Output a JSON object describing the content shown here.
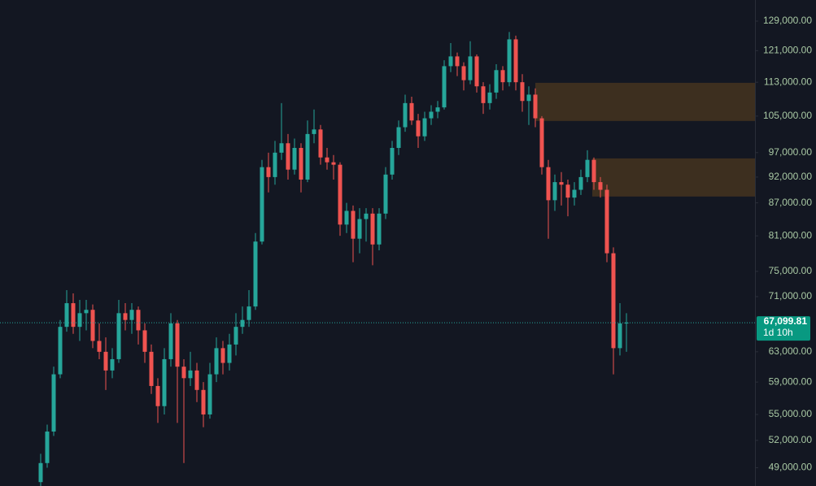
{
  "chart_data": {
    "type": "candlestick",
    "log_scale": true,
    "up_color": "#26a69a",
    "down_color": "#ef5350",
    "ylim": [
      47100,
      135040
    ],
    "yticks": [
      {
        "value": 49000,
        "label": "49,000.00"
      },
      {
        "value": 52000,
        "label": "52,000.00"
      },
      {
        "value": 55000,
        "label": "55,000.00"
      },
      {
        "value": 59000,
        "label": "59,000.00"
      },
      {
        "value": 63000,
        "label": "63,000.00"
      },
      {
        "value": 71000,
        "label": "71,000.00"
      },
      {
        "value": 75000,
        "label": "75,000.00"
      },
      {
        "value": 81000,
        "label": "81,000.00"
      },
      {
        "value": 87000,
        "label": "87,000.00"
      },
      {
        "value": 92000,
        "label": "92,000.00"
      },
      {
        "value": 97000,
        "label": "97,000.00"
      },
      {
        "value": 105000,
        "label": "105,000.00"
      },
      {
        "value": 113000,
        "label": "113,000.00"
      },
      {
        "value": 121000,
        "label": "121,000.00"
      },
      {
        "value": 129000,
        "label": "129,000.00"
      }
    ],
    "zones": [
      {
        "low": 103900,
        "high": 112850,
        "color": "#3d2f1f"
      },
      {
        "low": 88200,
        "high": 95800,
        "color": "#3d2f1f"
      }
    ],
    "last_price": {
      "value": 67099.81,
      "label": "67,099.81"
    },
    "countdown": "1d 10h",
    "open": [
      47500,
      49500,
      53000,
      60000,
      66500,
      70000,
      66500,
      68500,
      69000,
      64500,
      63000,
      60500,
      62000,
      68500,
      67500,
      69000,
      66000,
      63000,
      58500,
      56000,
      62000,
      67000,
      61000,
      59500,
      60500,
      58000,
      55000,
      60000,
      63500,
      61500,
      64000,
      66500,
      67500,
      69500,
      80000,
      94000,
      92000,
      97000,
      99000,
      93500,
      98000,
      91500,
      101000,
      102000,
      96000,
      95000,
      94500,
      83000,
      85500,
      80500,
      84000,
      85000,
      79500,
      85000,
      92500,
      98000,
      102500,
      108000,
      104000,
      100500,
      104500,
      106000,
      107000,
      117000,
      119500,
      117000,
      113500,
      119500,
      112000,
      108000,
      110500,
      116000,
      113000,
      124000,
      113000,
      108500,
      110000,
      104500,
      94000,
      87500,
      91000,
      90500,
      88000,
      89500,
      92000,
      95500,
      91000,
      89500,
      78000,
      63500,
      67000
    ],
    "high": [
      50500,
      53800,
      61000,
      67500,
      72000,
      71500,
      70500,
      70500,
      69800,
      67000,
      65000,
      63500,
      70500,
      70000,
      70000,
      69500,
      67000,
      64000,
      59500,
      63500,
      68500,
      67500,
      62000,
      63000,
      61500,
      59000,
      61500,
      65000,
      64500,
      65500,
      68500,
      69500,
      72000,
      81500,
      95500,
      97000,
      99500,
      108000,
      101000,
      100000,
      99000,
      104000,
      106500,
      103000,
      98000,
      96500,
      95000,
      87000,
      86500,
      86000,
      86000,
      86000,
      86000,
      94000,
      99500,
      104000,
      110000,
      109500,
      105500,
      106000,
      107500,
      108500,
      118500,
      123000,
      120500,
      118000,
      123500,
      120000,
      113000,
      112500,
      117500,
      117000,
      126000,
      125000,
      115000,
      112000,
      111500,
      105000,
      95500,
      92500,
      93000,
      91500,
      91000,
      93500,
      97500,
      96000,
      92000,
      90500,
      79000,
      70000,
      68500
    ],
    "low": [
      47000,
      49000,
      52500,
      59500,
      65800,
      65500,
      64500,
      66000,
      63500,
      62000,
      58000,
      59500,
      61500,
      66000,
      65500,
      64000,
      61500,
      57500,
      54000,
      55000,
      61000,
      54000,
      49500,
      58500,
      56500,
      53500,
      54500,
      59000,
      60000,
      60500,
      62500,
      65500,
      66500,
      69000,
      79500,
      89000,
      90500,
      95500,
      91500,
      92500,
      89000,
      91000,
      99000,
      94500,
      93500,
      91500,
      81000,
      81500,
      76500,
      78000,
      80000,
      76000,
      78500,
      84000,
      91500,
      96500,
      101500,
      103000,
      98000,
      99500,
      103000,
      104500,
      106500,
      115500,
      114500,
      111000,
      112500,
      110500,
      105500,
      106500,
      109000,
      111000,
      112000,
      111000,
      106000,
      103000,
      102500,
      92500,
      80500,
      85500,
      86500,
      84500,
      86500,
      88500,
      91000,
      89500,
      88000,
      76500,
      60000,
      62500,
      63000
    ],
    "close": [
      49500,
      53000,
      60000,
      66500,
      70000,
      66500,
      68500,
      69000,
      64500,
      63000,
      60500,
      62000,
      68500,
      67500,
      69000,
      66000,
      63000,
      58500,
      56000,
      62000,
      67000,
      61000,
      59500,
      60500,
      58000,
      55000,
      60000,
      63500,
      61500,
      64000,
      66500,
      67500,
      69500,
      80000,
      94000,
      92000,
      97000,
      99000,
      93500,
      98000,
      91500,
      101000,
      102000,
      96000,
      95000,
      94500,
      83000,
      85500,
      80500,
      84000,
      85000,
      79500,
      85000,
      92500,
      98000,
      102500,
      108000,
      104000,
      100500,
      104500,
      106000,
      107000,
      117000,
      119500,
      117000,
      113500,
      119500,
      112000,
      108000,
      110500,
      116000,
      113000,
      124000,
      113000,
      108500,
      110000,
      104500,
      94000,
      87500,
      91000,
      90500,
      88000,
      89500,
      92000,
      95500,
      91000,
      89500,
      78000,
      63500,
      67000,
      67099.81
    ]
  }
}
